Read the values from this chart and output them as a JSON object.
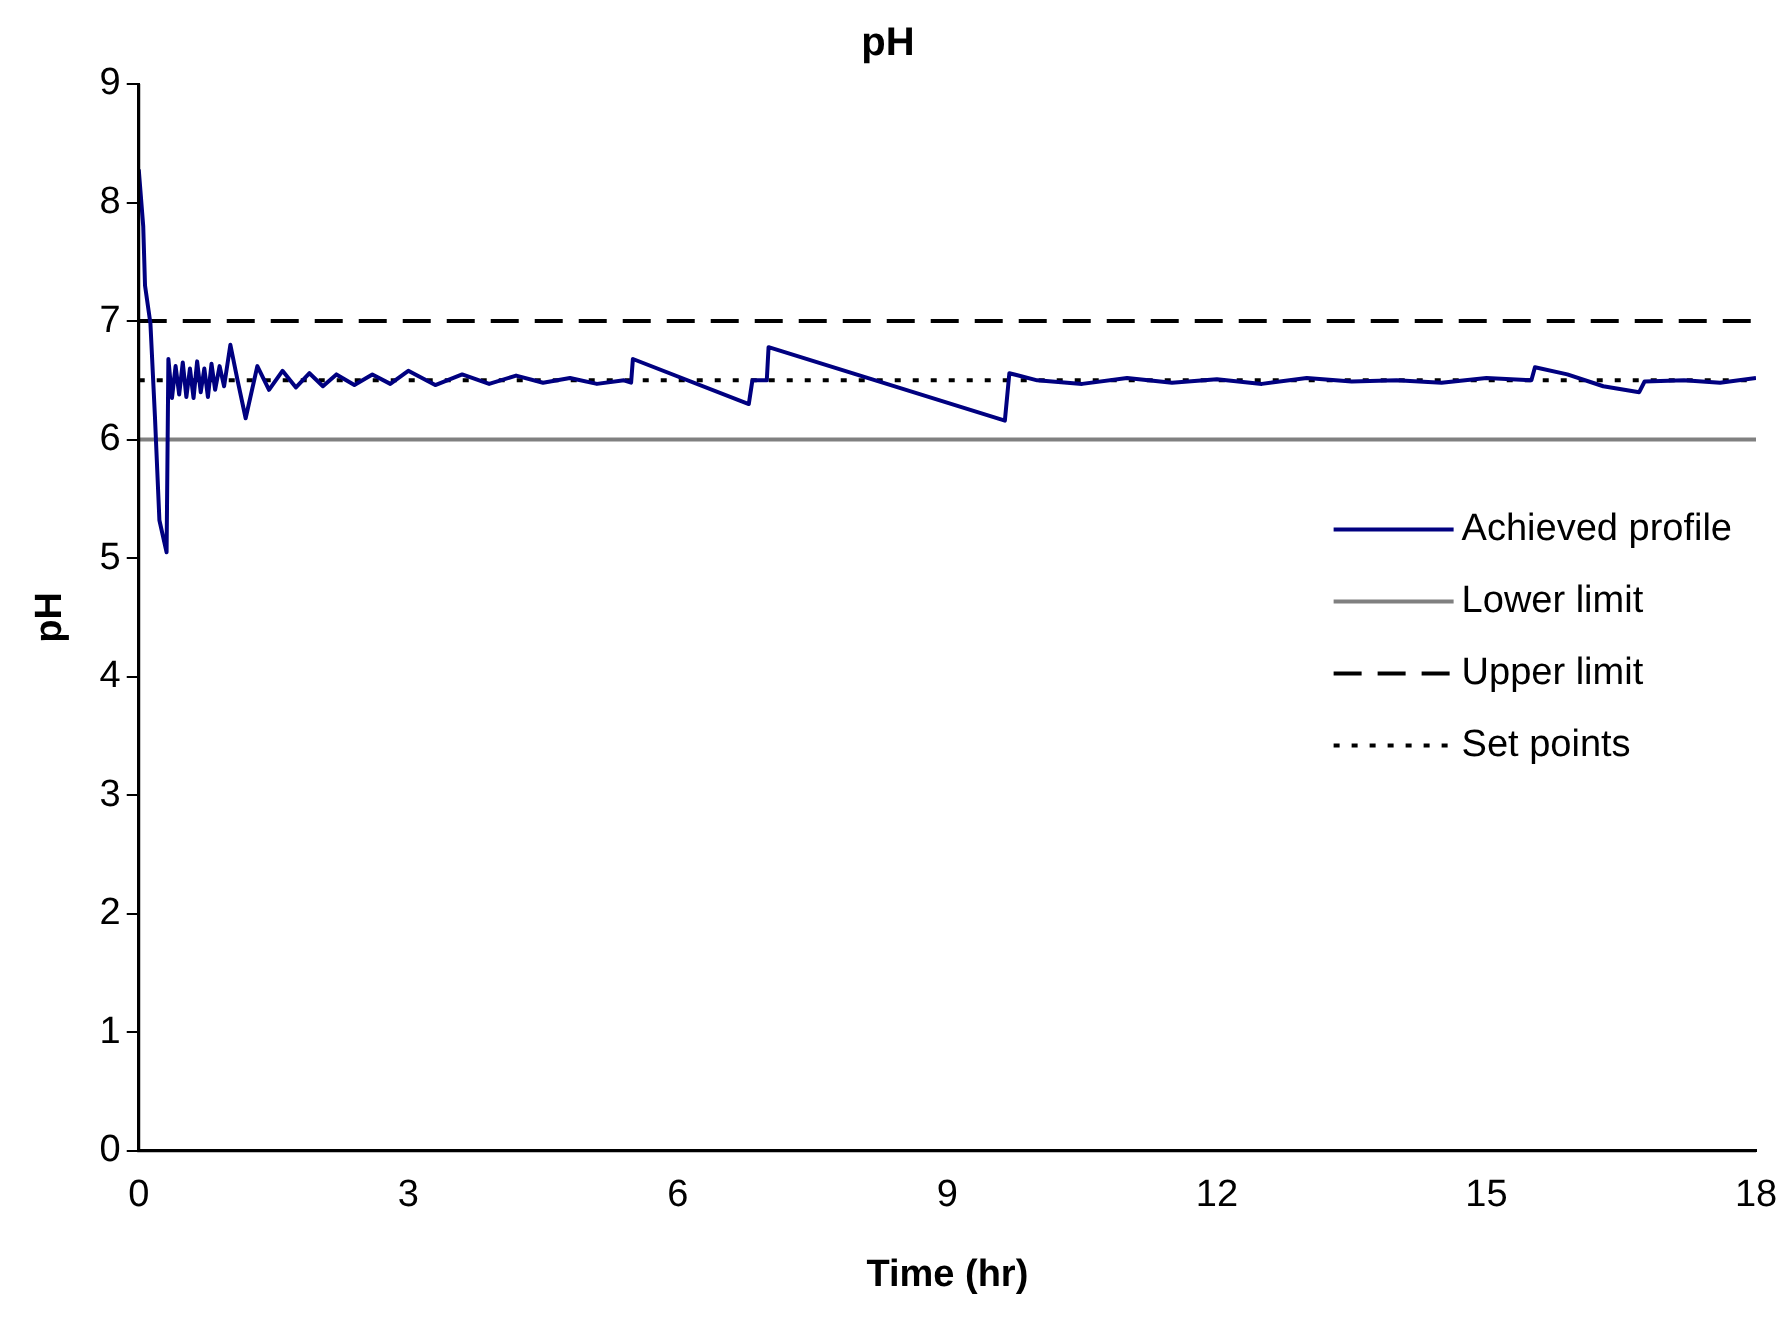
{
  "chart_data": {
    "type": "line",
    "title": "pH",
    "xlabel": "Time (hr)",
    "ylabel": "pH",
    "xlim": [
      0,
      18
    ],
    "xticks": [
      0,
      3,
      6,
      9,
      12,
      15,
      18
    ],
    "ylim": [
      0,
      9
    ],
    "yticks": [
      0,
      1,
      2,
      3,
      4,
      5,
      6,
      7,
      8,
      9
    ],
    "grid": false,
    "legend": "right",
    "marker": "none",
    "series": [
      {
        "name": "Achieved profile",
        "color": "#000080",
        "line_style": "solid",
        "x": [
          0,
          0.05,
          0.07,
          0.13,
          0.18,
          0.23,
          0.31,
          0.33,
          0.37,
          0.41,
          0.45,
          0.49,
          0.53,
          0.57,
          0.61,
          0.65,
          0.69,
          0.73,
          0.77,
          0.81,
          0.85,
          0.9,
          0.95,
          1.02,
          1.1,
          1.19,
          1.32,
          1.45,
          1.6,
          1.75,
          1.9,
          2.05,
          2.2,
          2.4,
          2.6,
          2.8,
          3,
          3.3,
          3.6,
          3.9,
          4.2,
          4.5,
          4.8,
          5.1,
          5.4,
          5.48,
          5.5,
          6.79,
          6.83,
          6.99,
          7.01,
          9.64,
          9.69,
          10,
          10.5,
          11,
          11.5,
          12,
          12.5,
          13,
          13.5,
          14,
          14.5,
          15,
          15.5,
          15.54,
          15.9,
          16.3,
          16.7,
          16.76,
          17.2,
          17.6,
          18
        ],
        "values": [
          8.28,
          7.8,
          7.3,
          6.98,
          6.2,
          5.32,
          5.05,
          6.68,
          6.35,
          6.62,
          6.38,
          6.65,
          6.36,
          6.6,
          6.35,
          6.66,
          6.4,
          6.6,
          6.36,
          6.64,
          6.42,
          6.62,
          6.45,
          6.8,
          6.5,
          6.18,
          6.62,
          6.42,
          6.58,
          6.44,
          6.56,
          6.45,
          6.55,
          6.46,
          6.55,
          6.47,
          6.58,
          6.46,
          6.55,
          6.47,
          6.54,
          6.48,
          6.52,
          6.47,
          6.5,
          6.48,
          6.68,
          6.3,
          6.5,
          6.5,
          6.78,
          6.16,
          6.56,
          6.5,
          6.47,
          6.52,
          6.48,
          6.51,
          6.47,
          6.52,
          6.49,
          6.5,
          6.48,
          6.52,
          6.5,
          6.61,
          6.55,
          6.45,
          6.4,
          6.49,
          6.5,
          6.48,
          6.52
        ]
      },
      {
        "name": "Lower limit",
        "color": "#808080",
        "line_style": "solid",
        "x": [
          0,
          18
        ],
        "values": [
          6,
          6
        ]
      },
      {
        "name": "Upper limit",
        "color": "#000000",
        "line_style": "dashed",
        "x": [
          0,
          18
        ],
        "values": [
          7,
          7
        ]
      },
      {
        "name": "Set points",
        "color": "#000000",
        "line_style": "dotted",
        "x": [
          0,
          18
        ],
        "values": [
          6.5,
          6.5
        ]
      }
    ]
  }
}
